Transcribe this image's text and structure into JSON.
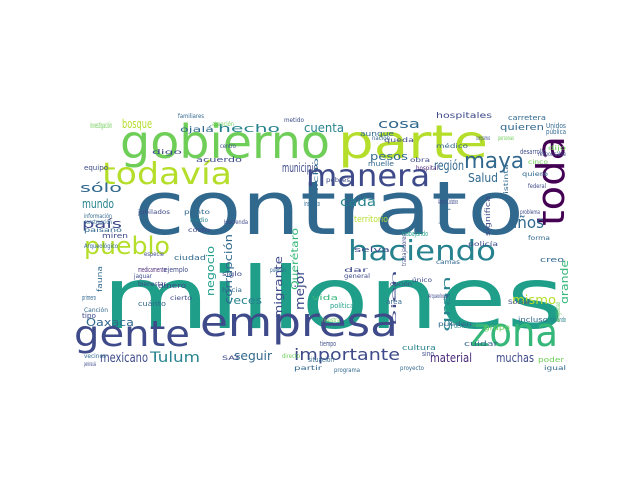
{
  "palette": {
    "dark_purple": "#440154",
    "indigo": "#482878",
    "blue": "#3e4a89",
    "slate_blue": "#31688e",
    "teal": "#26828e",
    "sea_green": "#1f9e89",
    "green": "#35b779",
    "light_green": "#6ece58",
    "lime": "#b5de2b",
    "yellow": "#fde725"
  },
  "words": [
    {
      "text": "millones",
      "color": "#1f9e89"
    },
    {
      "text": "contrato",
      "color": "#31688e"
    },
    {
      "text": "gobierno",
      "color": "#6ece58"
    },
    {
      "text": "parte",
      "color": "#b5de2b"
    },
    {
      "text": "empresa",
      "color": "#3e4a89"
    },
    {
      "text": "zona",
      "color": "#35b779"
    },
    {
      "text": "gente",
      "color": "#3e4a89"
    },
    {
      "text": "toda",
      "color": "#440154"
    },
    {
      "text": "todavía",
      "color": "#b5de2b"
    },
    {
      "text": "manera",
      "color": "#3e4a89"
    },
    {
      "text": "haciendo",
      "color": "#26828e"
    },
    {
      "text": "pueblo",
      "color": "#b5de2b"
    },
    {
      "text": "maya",
      "color": "#31688e"
    },
    {
      "text": "años",
      "color": "#31688e"
    },
    {
      "text": "importante",
      "color": "#3e4a89"
    },
    {
      "text": "Tulum",
      "color": "#26828e"
    },
    {
      "text": "mexicano",
      "color": "#3e4a89"
    },
    {
      "text": "hecho",
      "color": "#26828e"
    },
    {
      "text": "cuenta",
      "color": "#26828e"
    },
    {
      "text": "cosa",
      "color": "#31688e"
    },
    {
      "text": "bosque",
      "color": "#b5de2b"
    },
    {
      "text": "sólo",
      "color": "#31688e"
    },
    {
      "text": "mundo",
      "color": "#26828e"
    },
    {
      "text": "país",
      "color": "#3e4a89"
    },
    {
      "text": "región",
      "color": "#31688e"
    },
    {
      "text": "pesos",
      "color": "#31688e"
    },
    {
      "text": "cada",
      "color": "#26828e"
    },
    {
      "text": "Salud",
      "color": "#31688e"
    },
    {
      "text": "municipio",
      "color": "#3e4a89"
    },
    {
      "text": "migrante",
      "color": "#3e4a89"
    },
    {
      "text": "Querétaro",
      "color": "#35b779"
    },
    {
      "text": "corrupción",
      "color": "#31688e"
    },
    {
      "text": "negocio",
      "color": "#1f9e89"
    },
    {
      "text": "veces",
      "color": "#26828e"
    },
    {
      "text": "mejor",
      "color": "#3e4a89"
    },
    {
      "text": "seguir",
      "color": "#31688e"
    },
    {
      "text": "Oaxaca",
      "color": "#31688e"
    },
    {
      "text": "material",
      "color": "#482878"
    },
    {
      "text": "muchas",
      "color": "#3e4a89"
    },
    {
      "text": "mismo",
      "color": "#b5de2b"
    },
    {
      "text": "grande",
      "color": "#35b779"
    },
    {
      "text": "siempre",
      "color": "#31688e"
    },
    {
      "text": "gran",
      "color": "#26828e"
    },
    {
      "text": "territorio",
      "color": "#b5de2b"
    },
    {
      "text": "quieren",
      "color": "#31688e"
    },
    {
      "text": "hospitales",
      "color": "#3e4a89"
    },
    {
      "text": "investigación",
      "color": "#6ece58"
    },
    {
      "text": "ojalá",
      "color": "#31688e"
    },
    {
      "text": "acuerdo",
      "color": "#3e4a89"
    },
    {
      "text": "medicamento",
      "color": "#482878"
    },
    {
      "text": "dinero",
      "color": "#3e4a89"
    },
    {
      "text": "ciudad",
      "color": "#31688e"
    },
    {
      "text": "ejemplo",
      "color": "#3e4a89"
    },
    {
      "text": "grupo",
      "color": "#6ece58"
    },
    {
      "text": "cuidar",
      "color": "#31688e"
    },
    {
      "text": "denuncia",
      "color": "#26828e"
    },
    {
      "text": "poder",
      "color": "#6ece58"
    },
    {
      "text": "equipo",
      "color": "#3e4a89"
    },
    {
      "text": "miren",
      "color": "#3e4a89"
    },
    {
      "text": "cuánto",
      "color": "#31688e"
    },
    {
      "text": "incluso",
      "color": "#31688e"
    },
    {
      "text": "hablando",
      "color": "#26828e"
    },
    {
      "text": "creo",
      "color": "#31688e"
    },
    {
      "text": "Unidos",
      "color": "#31688e"
    },
    {
      "text": "selva",
      "color": "#3e4a89"
    },
    {
      "text": "trabajando",
      "color": "#1f9e89"
    },
    {
      "text": "cultura",
      "color": "#26828e"
    },
    {
      "text": "situación",
      "color": "#31688e"
    },
    {
      "text": "tiempo",
      "color": "#3e4a89"
    },
    {
      "text": "área",
      "color": "#31688e"
    },
    {
      "text": "vida",
      "color": "#35b779"
    },
    {
      "text": "política",
      "color": "#1f9e89"
    },
    {
      "text": "muelle",
      "color": "#31688e"
    },
    {
      "text": "aunque",
      "color": "#31688e"
    },
    {
      "text": "carretera",
      "color": "#31688e"
    },
    {
      "text": "desarrollo",
      "color": "#3e4a89"
    },
    {
      "text": "pública",
      "color": "#31688e"
    },
    {
      "text": "medio",
      "color": "#26828e"
    },
    {
      "text": "fauna",
      "color": "#31688e"
    },
    {
      "text": "primero",
      "color": "#31688e"
    },
    {
      "text": "tipo",
      "color": "#3e4a89"
    },
    {
      "text": "sino",
      "color": "#3e4a89"
    },
    {
      "text": "dar",
      "color": "#3e4a89"
    },
    {
      "text": "general",
      "color": "#3e4a89"
    },
    {
      "text": "significa",
      "color": "#3e4a89"
    },
    {
      "text": "Arqueológico",
      "color": "#31688e"
    },
    {
      "text": "información",
      "color": "#31688e"
    },
    {
      "text": "instituto",
      "color": "#31688e"
    },
    {
      "text": "bien",
      "color": "#3e4a89"
    },
    {
      "text": "Atención Ciudadana",
      "color": "#3e4a89"
    },
    {
      "text": "costo",
      "color": "#3e4a89"
    },
    {
      "text": "Canción",
      "color": "#31688e"
    },
    {
      "text": "hospital",
      "color": "#482878"
    },
    {
      "text": "pueden",
      "color": "#31688e"
    },
    {
      "text": "Arqueología",
      "color": "#3e4a89"
    },
    {
      "text": "Social",
      "color": "#3e4a89"
    },
    {
      "text": "centro",
      "color": "#3e4a89"
    },
    {
      "text": "digo",
      "color": "#3e4a89"
    },
    {
      "text": "familiares",
      "color": "#31688e"
    },
    {
      "text": "atención",
      "color": "#6ece58"
    },
    {
      "text": "metido",
      "color": "#3e4a89"
    },
    {
      "text": "queda",
      "color": "#3e4a89"
    },
    {
      "text": "personas",
      "color": "#6ece58"
    },
    {
      "text": "obra",
      "color": "#3e4a89"
    },
    {
      "text": "forma",
      "color": "#31688e"
    },
    {
      "text": "policía",
      "color": "#3e4a89"
    },
    {
      "text": "bienestar",
      "color": "#3e4a89"
    },
    {
      "text": "peninsula",
      "color": "#3e4a89"
    },
    {
      "text": "SAT",
      "color": "#3e4a89"
    },
    {
      "text": "partir",
      "color": "#31688e"
    },
    {
      "text": "programa",
      "color": "#31688e"
    },
    {
      "text": "proyecto",
      "color": "#31688e"
    },
    {
      "text": "directo",
      "color": "#6ece58"
    },
    {
      "text": "único",
      "color": "#3e4a89"
    },
    {
      "text": "opción",
      "color": "#3e4a89"
    },
    {
      "text": "federal",
      "color": "#3e4a89"
    },
    {
      "text": "punto",
      "color": "#31688e"
    },
    {
      "text": "Hacienda",
      "color": "#3e4a89"
    },
    {
      "text": "paisano",
      "color": "#31688e"
    },
    {
      "text": "construcción",
      "color": "#31688e"
    },
    {
      "text": "jubilados",
      "color": "#3e4a89"
    },
    {
      "text": "antigüedad",
      "color": "#6ece58"
    },
    {
      "text": "nación",
      "color": "#31688e"
    },
    {
      "text": "cinco",
      "color": "#6ece58"
    },
    {
      "text": "quiero",
      "color": "#31688e"
    },
    {
      "text": "distinta",
      "color": "#31688e"
    },
    {
      "text": "responsable",
      "color": "#3e4a89"
    },
    {
      "text": "problema",
      "color": "#3e4a89"
    },
    {
      "text": "camas",
      "color": "#31688e"
    },
    {
      "text": "vecinos",
      "color": "#31688e"
    },
    {
      "text": "especie",
      "color": "#3e4a89"
    },
    {
      "text": "jaguar",
      "color": "#3e4a89"
    },
    {
      "text": "siglo",
      "color": "#3e4a89"
    },
    {
      "text": "médico",
      "color": "#31688e"
    },
    {
      "text": "compramos",
      "color": "#3e4a89"
    },
    {
      "text": "dijo",
      "color": "#6ece58"
    },
    {
      "text": "hacia",
      "color": "#31688e"
    },
    {
      "text": "cierto",
      "color": "#3e4a89"
    },
    {
      "text": "puedan",
      "color": "#31688e"
    },
    {
      "text": "igual",
      "color": "#31688e"
    },
    {
      "text": "pobres",
      "color": "#3e4a89"
    },
    {
      "text": "nuestra",
      "color": "#6ece58"
    },
    {
      "text": "dicho",
      "color": "#31688e"
    },
    {
      "text": "trabajadores",
      "color": "#3e4a89"
    },
    {
      "text": "naturaleza",
      "color": "#3e4a89"
    }
  ]
}
